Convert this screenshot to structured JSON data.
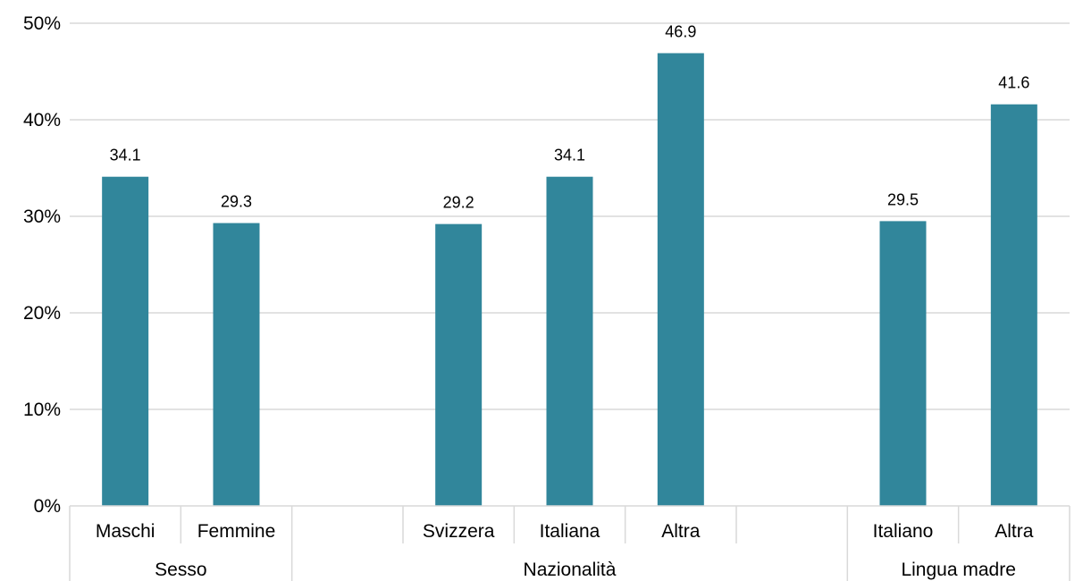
{
  "chart_data": {
    "type": "bar",
    "categories": [
      "Maschi",
      "Femmine",
      "",
      "Svizzera",
      "Italiana",
      "Altra",
      "",
      "Italiano",
      "Altra"
    ],
    "groups": [
      {
        "label": "Sesso",
        "span": 2
      },
      {
        "label": "Nazionalità",
        "span": 5
      },
      {
        "label": "Lingua madre",
        "span": 2
      }
    ],
    "values": [
      34.1,
      29.3,
      null,
      29.2,
      34.1,
      46.9,
      null,
      29.5,
      41.6
    ],
    "data_labels": [
      "34.1",
      "29.3",
      "",
      "29.2",
      "34.1",
      "46.9",
      "",
      "29.5",
      "41.6"
    ],
    "ylim": [
      0,
      50
    ],
    "yticks": [
      0,
      10,
      20,
      30,
      40,
      50
    ],
    "ytick_labels": [
      "0%",
      "10%",
      "20%",
      "30%",
      "40%",
      "50%"
    ],
    "grid": true,
    "legend": "none",
    "bar_color": "#31869b"
  }
}
